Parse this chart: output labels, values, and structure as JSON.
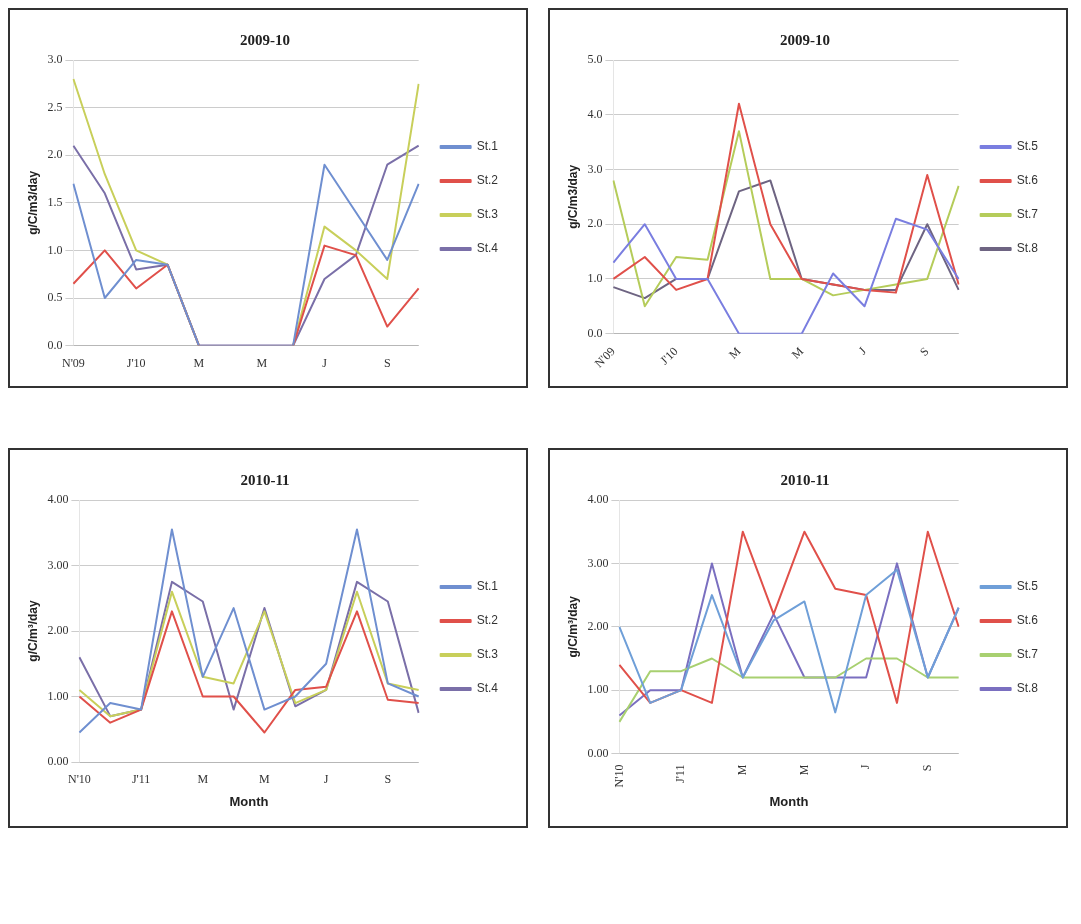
{
  "chart_data": [
    {
      "type": "line",
      "title": "2009-10",
      "ylabel": "g/C/m3/day",
      "categories": [
        "N'09",
        null,
        "J'10",
        null,
        "M",
        null,
        "M",
        null,
        "J",
        null,
        "S",
        null
      ],
      "ylim": [
        0,
        3
      ],
      "yticks": [
        {
          "value": 0,
          "label": "0.0"
        },
        0.5,
        {
          "value": 1,
          "label": "1.0"
        },
        1.5,
        {
          "value": 2,
          "label": "2.0"
        },
        2.5,
        {
          "value": 3,
          "label": "3.0"
        }
      ],
      "grid": "y",
      "legend": "right",
      "marker": "none",
      "line_style": "solid",
      "series": [
        {
          "name": "St.1",
          "color": "#6f8fd0",
          "values": [
            1.7,
            0.5,
            0.9,
            0.85,
            0,
            null,
            null,
            0,
            1.9,
            1.4,
            0.9,
            1.7
          ]
        },
        {
          "name": "St.2",
          "color": "#e0504a",
          "values": [
            0.65,
            1.0,
            0.6,
            0.85,
            0,
            null,
            null,
            0,
            1.05,
            0.95,
            0.2,
            0.6
          ]
        },
        {
          "name": "St.3",
          "color": "#c8cf5a",
          "values": [
            2.8,
            1.8,
            1.0,
            0.85,
            0,
            null,
            null,
            0,
            1.25,
            1.0,
            0.7,
            2.75
          ]
        },
        {
          "name": "St.4",
          "color": "#7a6fa8",
          "values": [
            2.1,
            1.6,
            0.8,
            0.85,
            0,
            0,
            0,
            0,
            0.7,
            0.95,
            1.9,
            2.1
          ]
        }
      ]
    },
    {
      "type": "line",
      "title": "2009-10",
      "ylabel": "g/C/m3/day",
      "categories": [
        "N'09",
        null,
        "J'10",
        null,
        "M",
        null,
        "M",
        null,
        "J",
        null,
        "S",
        null
      ],
      "ylim": [
        0,
        5
      ],
      "yticks": [
        {
          "value": 0,
          "label": "0.0"
        },
        {
          "value": 1,
          "label": "1.0"
        },
        {
          "value": 2,
          "label": "2.0"
        },
        {
          "value": 3,
          "label": "3.0"
        },
        {
          "value": 4,
          "label": "4.0"
        },
        {
          "value": 5,
          "label": "5.0"
        }
      ],
      "grid": "y",
      "legend": "right",
      "marker": "none",
      "line_style": "solid",
      "series": [
        {
          "name": "St.5",
          "color": "#7a7ee0",
          "values": [
            1.3,
            2.0,
            1.0,
            1.0,
            0,
            0,
            0,
            1.1,
            0.5,
            2.1,
            1.9,
            1.0
          ]
        },
        {
          "name": "St.6",
          "color": "#e0504a",
          "values": [
            1.0,
            1.4,
            0.8,
            1.0,
            4.2,
            2.0,
            1.0,
            0.9,
            0.8,
            0.75,
            2.9,
            0.9
          ]
        },
        {
          "name": "St.7",
          "color": "#b5cc5a",
          "values": [
            2.8,
            0.5,
            1.4,
            1.35,
            3.7,
            1.0,
            1.0,
            0.7,
            0.8,
            0.9,
            1.0,
            2.7
          ]
        },
        {
          "name": "St.8",
          "color": "#6e6482",
          "values": [
            0.85,
            0.65,
            1.0,
            1.0,
            2.6,
            2.8,
            1.0,
            0.9,
            0.8,
            0.8,
            2.0,
            0.8
          ]
        }
      ]
    },
    {
      "type": "line",
      "title": "2010-11",
      "xlabel": "Month",
      "ylabel": "g/C/m³/day",
      "categories": [
        "N'10",
        null,
        "J'11",
        null,
        "M",
        null,
        "M",
        null,
        "J",
        null,
        "S",
        null
      ],
      "ylim": [
        0,
        4
      ],
      "yticks": [
        {
          "value": 0,
          "label": "0.00"
        },
        {
          "value": 1,
          "label": "1.00"
        },
        {
          "value": 2,
          "label": "2.00"
        },
        {
          "value": 3,
          "label": "3.00"
        },
        {
          "value": 4,
          "label": "4.00"
        }
      ],
      "grid": "y",
      "legend": "right",
      "marker": "none",
      "line_style": "solid",
      "series": [
        {
          "name": "St.1",
          "color": "#6f8fd0",
          "values": [
            0.45,
            0.9,
            0.8,
            3.55,
            1.3,
            2.35,
            0.8,
            1.0,
            1.5,
            3.55,
            1.2,
            1.0
          ]
        },
        {
          "name": "St.2",
          "color": "#e0504a",
          "values": [
            1.0,
            0.6,
            0.8,
            2.3,
            1.0,
            1.0,
            0.45,
            1.1,
            1.15,
            2.3,
            0.95,
            0.9
          ]
        },
        {
          "name": "St.3",
          "color": "#c8cf5a",
          "values": [
            1.1,
            0.7,
            0.8,
            2.6,
            1.3,
            1.2,
            2.3,
            0.9,
            1.1,
            2.6,
            1.2,
            1.1
          ]
        },
        {
          "name": "St.4",
          "color": "#7a6fa8",
          "values": [
            1.6,
            0.7,
            0.8,
            2.75,
            2.45,
            0.8,
            2.35,
            0.85,
            1.1,
            2.75,
            2.45,
            0.75
          ]
        }
      ]
    },
    {
      "type": "line",
      "title": "2010-11",
      "xlabel": "Month",
      "ylabel": "g/C/m³/day",
      "categories": [
        "N'10",
        null,
        "J'11",
        null,
        "M",
        null,
        "M",
        null,
        "J",
        null,
        "S",
        null
      ],
      "ylim": [
        0,
        4
      ],
      "yticks": [
        {
          "value": 0,
          "label": "0.00"
        },
        {
          "value": 1,
          "label": "1.00"
        },
        {
          "value": 2,
          "label": "2.00"
        },
        {
          "value": 3,
          "label": "3.00"
        },
        {
          "value": 4,
          "label": "4.00"
        }
      ],
      "grid": "y",
      "legend": "right",
      "marker": "none",
      "line_style": "solid",
      "series": [
        {
          "name": "St.5",
          "color": "#6f9fd8",
          "values": [
            2.0,
            0.8,
            1.0,
            2.5,
            1.2,
            2.1,
            2.4,
            0.65,
            2.5,
            2.9,
            1.2,
            2.3
          ]
        },
        {
          "name": "St.6",
          "color": "#e0504a",
          "values": [
            1.4,
            0.8,
            1.0,
            0.8,
            3.5,
            2.2,
            3.5,
            2.6,
            2.5,
            0.8,
            3.5,
            2.0
          ]
        },
        {
          "name": "St.7",
          "color": "#a8d070",
          "values": [
            0.5,
            1.3,
            1.3,
            1.5,
            1.2,
            1.2,
            1.2,
            1.2,
            1.5,
            1.5,
            1.2,
            1.2
          ]
        },
        {
          "name": "St.8",
          "color": "#7a6fc0",
          "values": [
            0.6,
            1.0,
            1.0,
            3.0,
            1.2,
            2.2,
            1.2,
            1.2,
            1.2,
            3.0,
            1.2,
            2.3
          ]
        }
      ]
    }
  ]
}
